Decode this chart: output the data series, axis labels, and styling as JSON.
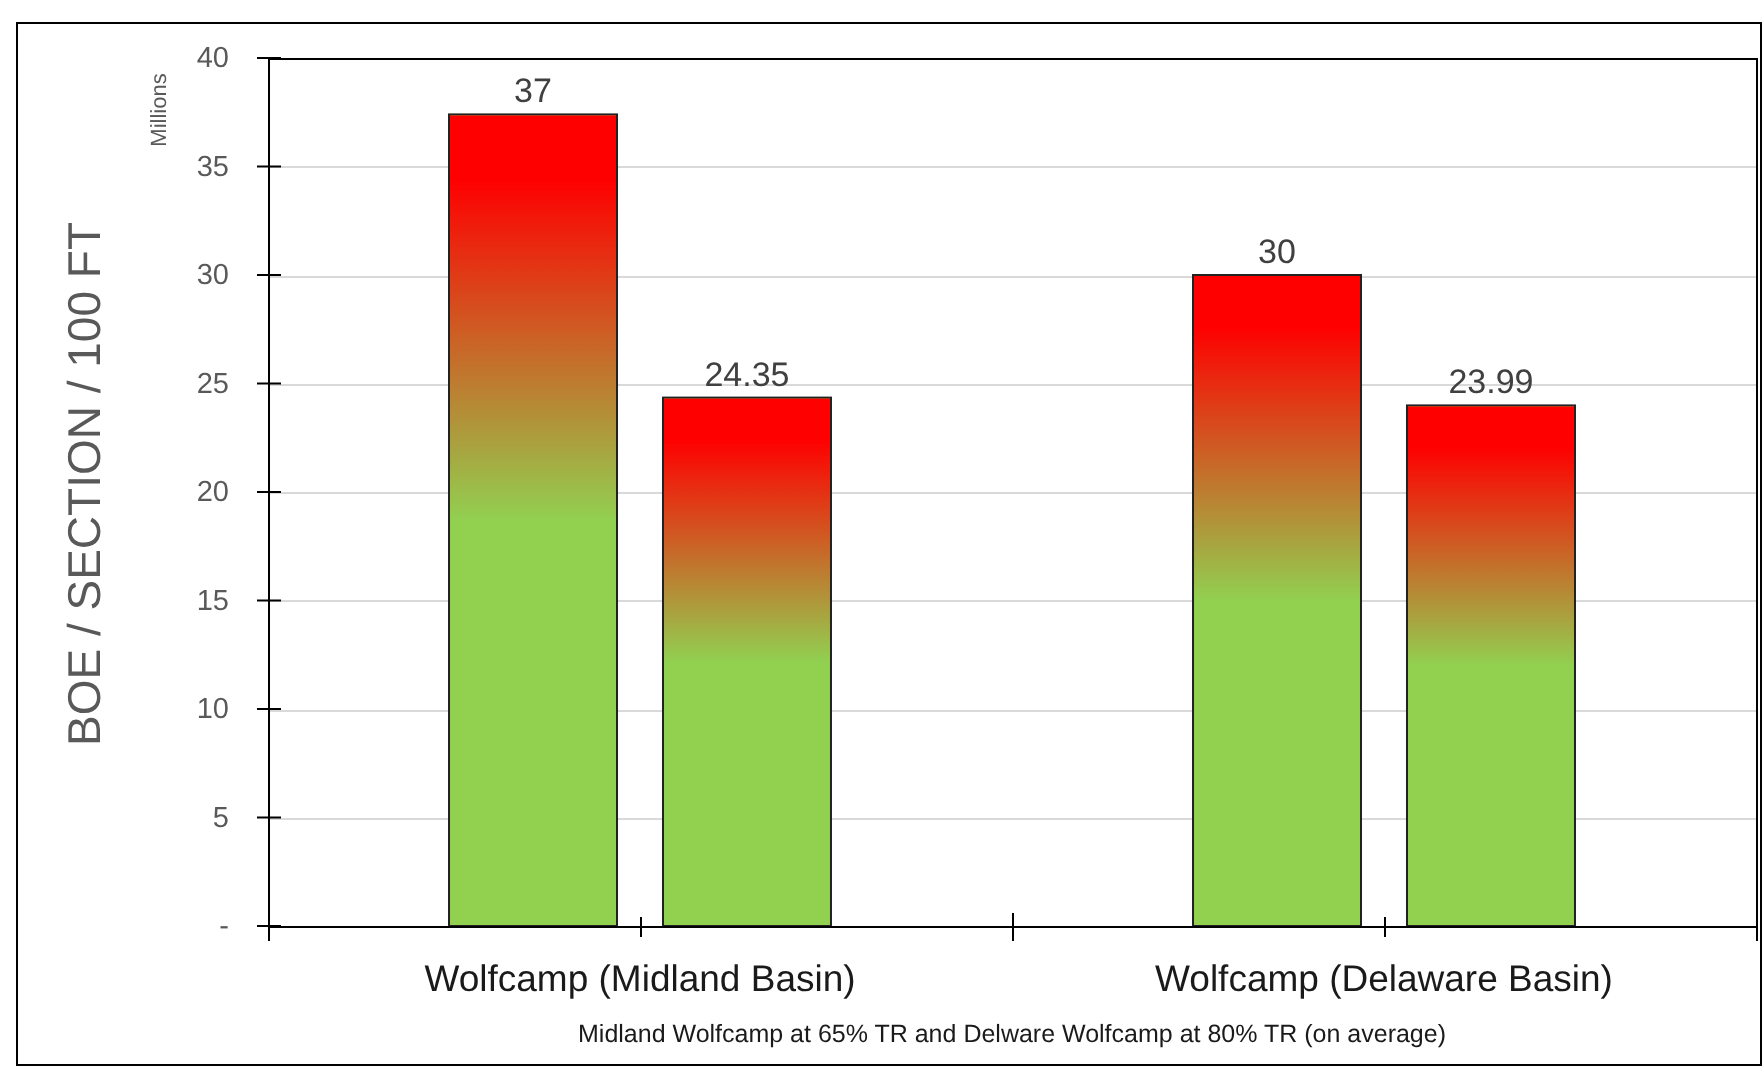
{
  "chart_data": {
    "type": "bar",
    "categories": [
      "Wolfcamp (Midland Basin)",
      "Wolfcamp (Delaware Basin)"
    ],
    "series": [
      {
        "color": "#92d050",
        "values": [
          37.4,
          30
        ],
        "value_labels": [
          "37",
          "30"
        ]
      },
      {
        "color": "#92d050",
        "values": [
          24.35,
          23.99
        ],
        "value_labels": [
          "24.35",
          "23.99"
        ]
      }
    ],
    "ylim": [
      0,
      40
    ],
    "yticks": [
      {
        "value": 0,
        "label": "-"
      },
      5,
      10,
      15,
      20,
      25,
      30,
      35,
      40
    ],
    "grid": "y",
    "ylabel": "BOE / SECTION / 100 FT",
    "xlabel": "Midland Wolfcamp at 65% TR and Delware Wolfcamp at 80% TR (on average)",
    "annotations": [
      "Millions"
    ]
  }
}
